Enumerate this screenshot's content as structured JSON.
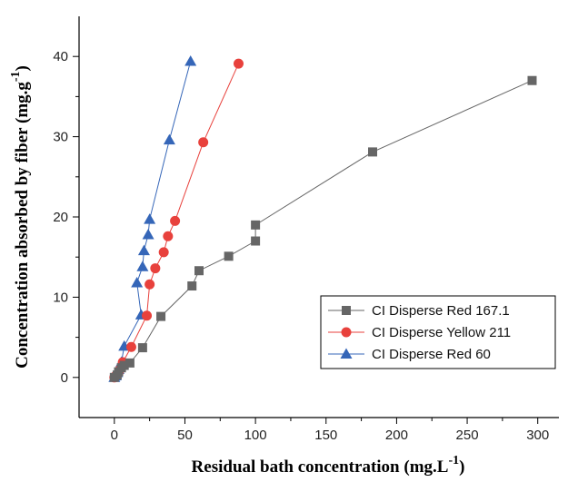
{
  "chart_data": {
    "type": "scatter",
    "title": "",
    "xlabel": "Residual bath concentration (mg.L",
    "xlabel_sup": "-1",
    "xlabel_end": ")",
    "ylabel": "Concentration absorbed by fiber (mg.g",
    "ylabel_sup": "-1",
    "ylabel_end": ")",
    "xlim": [
      -25,
      315
    ],
    "ylim": [
      -5,
      45
    ],
    "xticks": [
      0,
      50,
      100,
      150,
      200,
      250,
      300
    ],
    "yticks": [
      0,
      10,
      20,
      30,
      40
    ],
    "grid": false,
    "legend_position": "bottom-right",
    "series": [
      {
        "name": "CI Disperse Red 167.1",
        "color": "#666666",
        "marker": "square",
        "x": [
          0,
          2,
          3,
          5,
          7,
          11,
          20,
          33,
          55,
          60,
          81,
          100,
          100,
          183,
          296
        ],
        "y": [
          0,
          0.3,
          0.7,
          1.2,
          1.5,
          1.8,
          3.7,
          7.6,
          11.4,
          13.3,
          15.1,
          17.0,
          19.0,
          28.1,
          37.0
        ]
      },
      {
        "name": "CI Disperse Yellow 211",
        "color": "#e8413c",
        "marker": "circle",
        "x": [
          0,
          1,
          3,
          4,
          6,
          12,
          23,
          25,
          29,
          35,
          38,
          43,
          63,
          88
        ],
        "y": [
          0,
          0.2,
          0.6,
          1.0,
          1.9,
          3.8,
          7.7,
          11.6,
          13.6,
          15.6,
          17.6,
          19.5,
          29.3,
          39.1
        ]
      },
      {
        "name": "CI Disperse Red 60",
        "color": "#3566b8",
        "marker": "triangle",
        "x": [
          0,
          1,
          2,
          3,
          5,
          7,
          19,
          16,
          20,
          21,
          24,
          25,
          39,
          54
        ],
        "y": [
          0,
          0.2,
          0.6,
          1.0,
          1.9,
          3.9,
          7.8,
          11.8,
          13.8,
          15.8,
          17.8,
          19.7,
          29.6,
          39.4
        ]
      }
    ]
  }
}
